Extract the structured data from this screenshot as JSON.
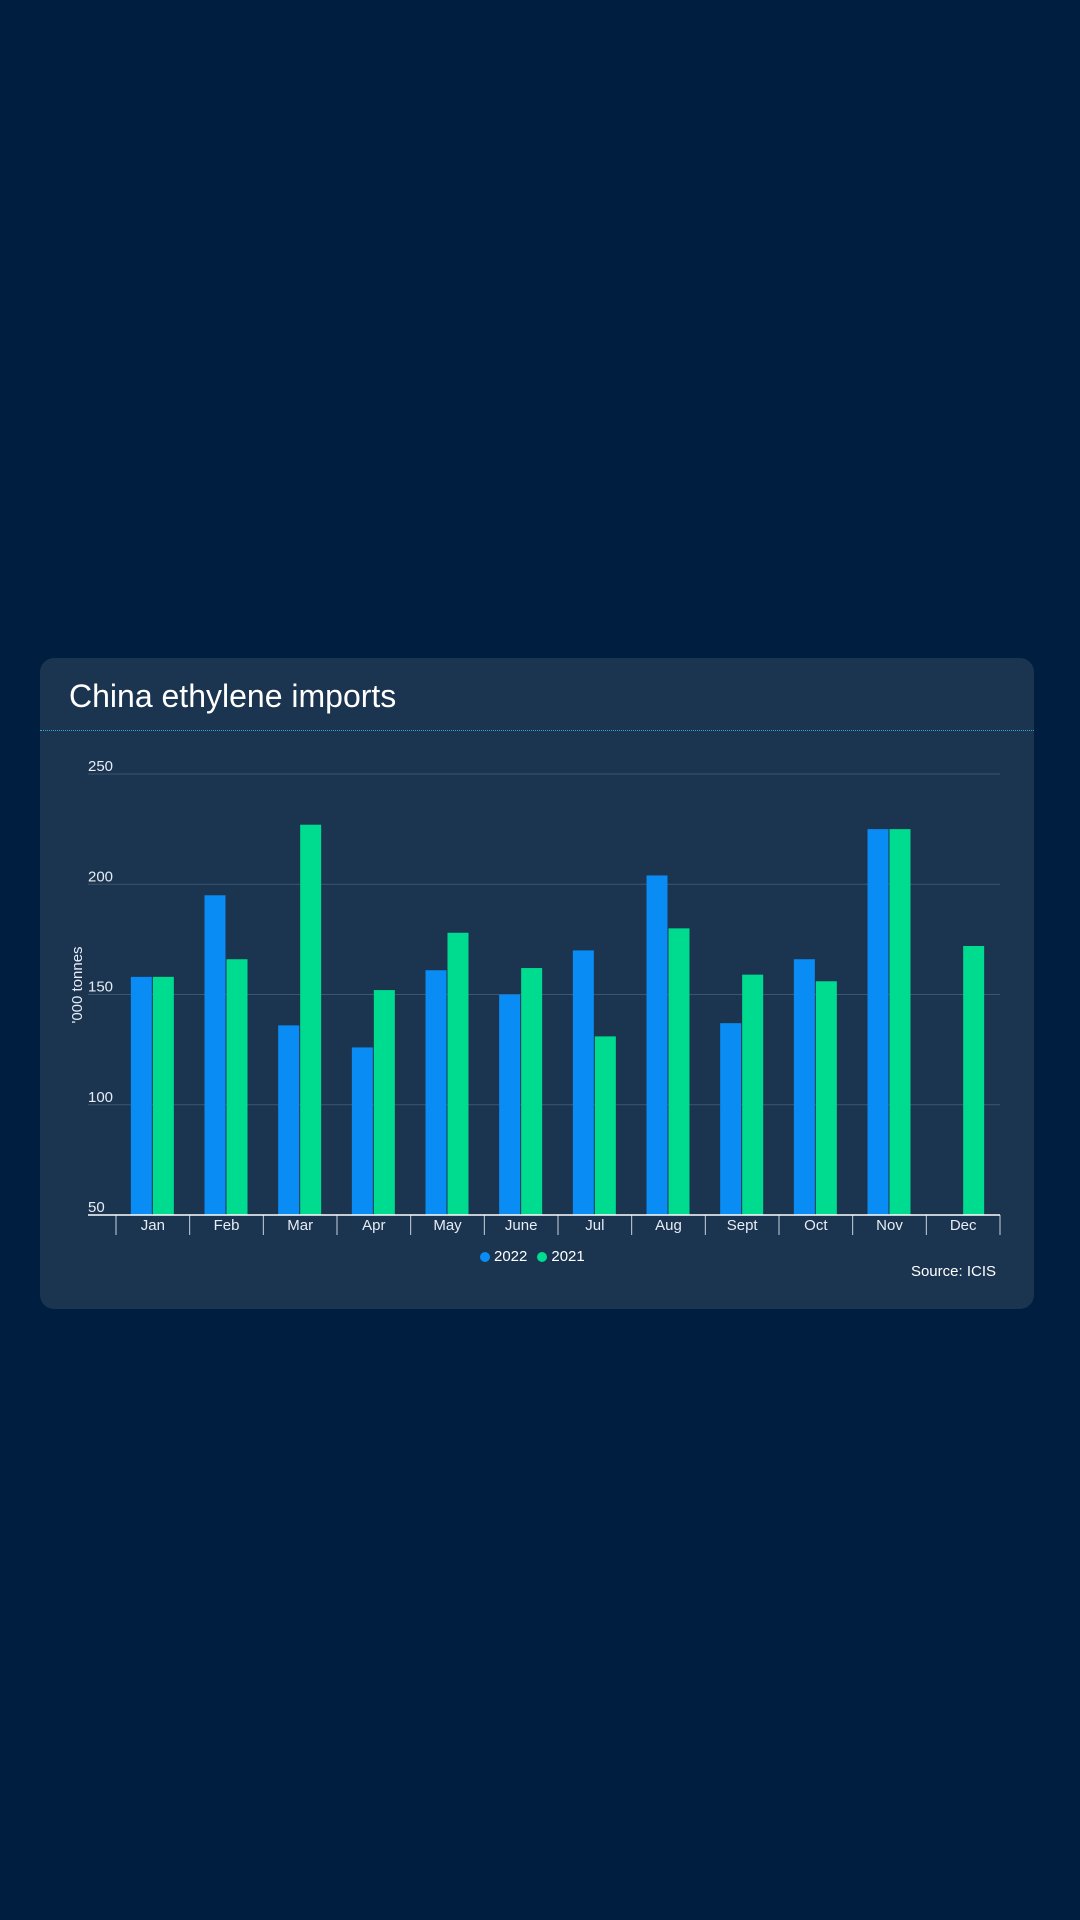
{
  "chart_data": {
    "type": "bar",
    "title": "China ethylene imports",
    "ylabel": "'000 tonnes",
    "xlabel": "",
    "ylim": [
      50,
      250
    ],
    "yticks": [
      50,
      100,
      150,
      200,
      250
    ],
    "grid": true,
    "legend_placement": "bottom-center",
    "categories": [
      "Jan",
      "Feb",
      "Mar",
      "Apr",
      "May",
      "June",
      "Jul",
      "Aug",
      "Sept",
      "Oct",
      "Nov",
      "Dec"
    ],
    "series": [
      {
        "name": "2022",
        "color": "#0a8cf5",
        "values": [
          158,
          195,
          136,
          126,
          161,
          150,
          170,
          204,
          137,
          166,
          225,
          null
        ]
      },
      {
        "name": "2021",
        "color": "#00dc8f",
        "values": [
          158,
          166,
          227,
          152,
          178,
          162,
          131,
          180,
          159,
          156,
          225,
          172
        ]
      }
    ],
    "source": "Source: ICIS"
  }
}
